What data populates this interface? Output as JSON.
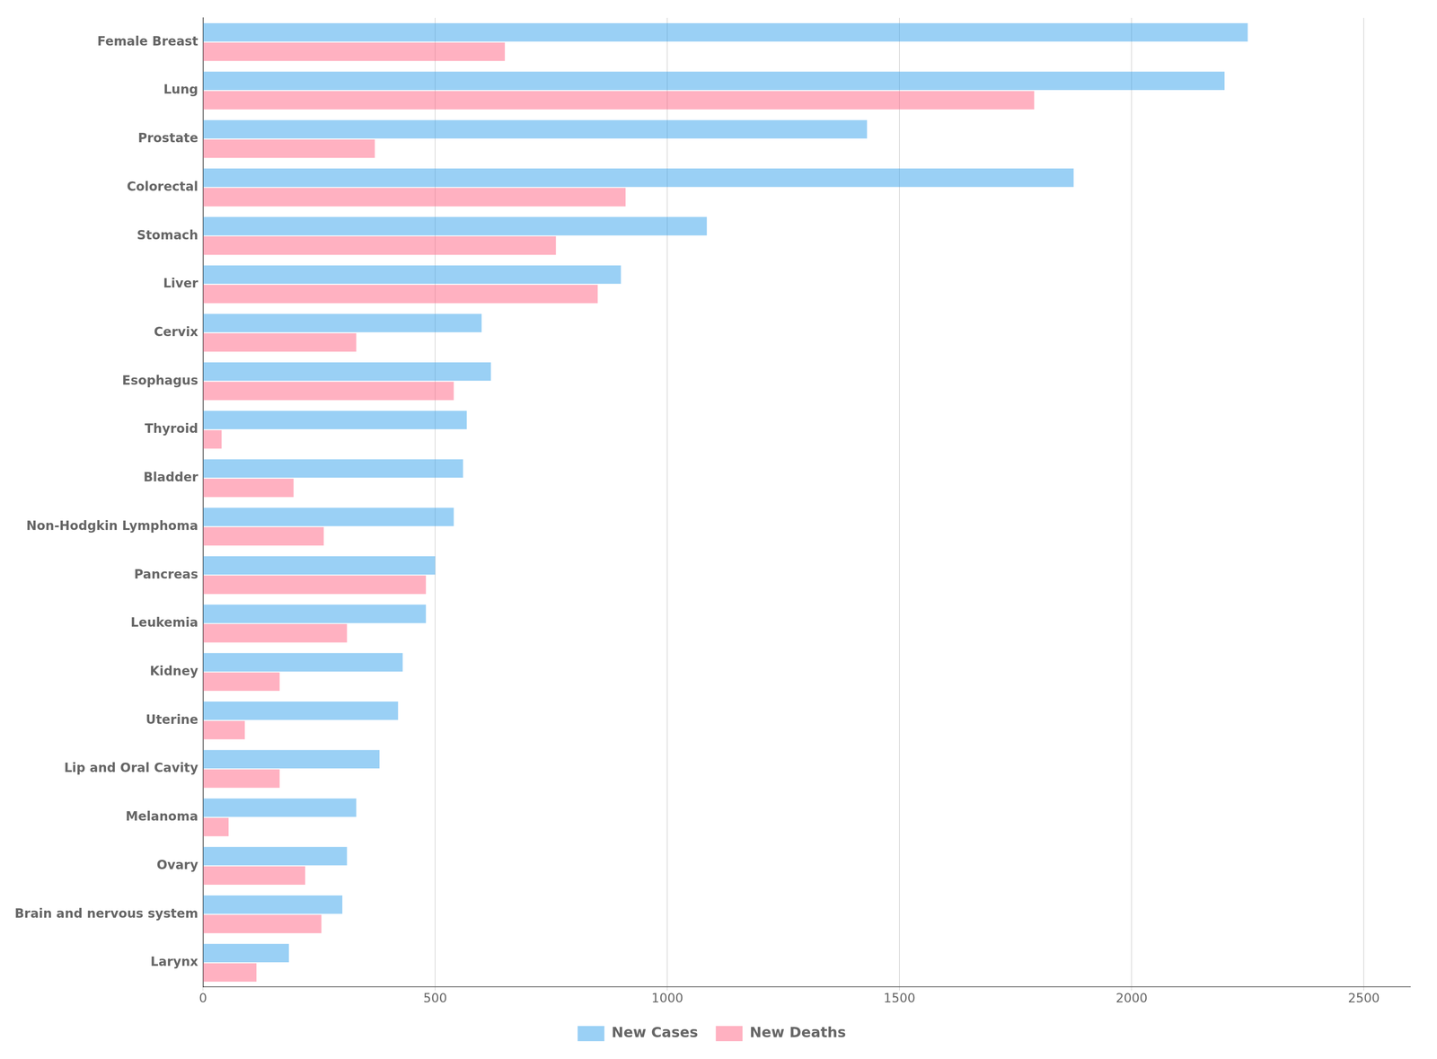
{
  "chart_data": {
    "type": "bar",
    "orientation": "horizontal",
    "categories": [
      "Female Breast",
      "Lung",
      "Prostate",
      "Colorectal",
      "Stomach",
      "Liver",
      "Cervix",
      "Esophagus",
      "Thyroid",
      "Bladder",
      "Non-Hodgkin Lymphoma",
      "Pancreas",
      "Leukemia",
      "Kidney",
      "Uterine",
      "Lip and Oral Cavity",
      "Melanoma",
      "Ovary",
      "Brain and nervous system",
      "Larynx"
    ],
    "series": [
      {
        "name": "New Cases",
        "values": [
          2250,
          2200,
          1430,
          1875,
          1085,
          900,
          600,
          620,
          568,
          560,
          540,
          500,
          480,
          430,
          420,
          380,
          330,
          310,
          300,
          185
        ]
      },
      {
        "name": "New Deaths",
        "values": [
          650,
          1790,
          370,
          910,
          760,
          850,
          330,
          540,
          40,
          195,
          260,
          480,
          310,
          165,
          90,
          165,
          55,
          220,
          255,
          115
        ]
      }
    ],
    "xlim": [
      0,
      2600
    ],
    "xticks": [
      0,
      500,
      1000,
      1500,
      2000,
      2500
    ],
    "grid": true,
    "legend": "bottom"
  }
}
